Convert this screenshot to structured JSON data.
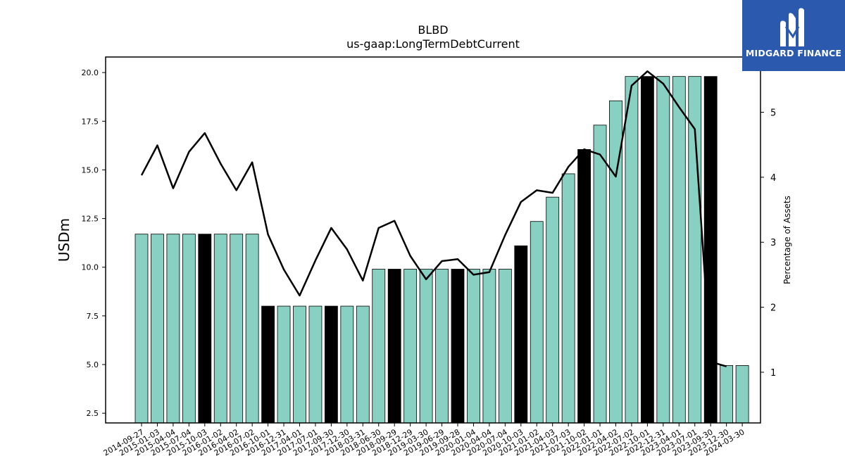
{
  "brand": {
    "name": "MIDGARD FINANCE",
    "color": "#2b59ad"
  },
  "chart_data": {
    "type": "bar",
    "title": "BLBD",
    "subtitle": "us-gaap:LongTermDebtCurrent",
    "ylabel": "USDm",
    "y2label": "Percentage of Assets",
    "ylim": [
      2.0,
      20.8
    ],
    "y2lim": [
      0.22,
      5.85
    ],
    "yticks": [
      "2.5",
      "5.0",
      "7.5",
      "10.0",
      "12.5",
      "15.0",
      "17.5",
      "20.0"
    ],
    "y2ticks": [
      "1",
      "2",
      "3",
      "4",
      "5"
    ],
    "colors": {
      "bar": "#88d0c2",
      "bar_highlight": "#000000",
      "line": "#000000"
    },
    "categories": [
      "2014-09-27",
      "2015-01-03",
      "2015-04-04",
      "2015-07-04",
      "2015-10-03",
      "2016-01-02",
      "2016-04-02",
      "2016-07-02",
      "2016-10-01",
      "2016-12-31",
      "2017-04-01",
      "2017-07-01",
      "2017-09-30",
      "2017-12-30",
      "2018-03-31",
      "2018-06-30",
      "2018-09-29",
      "2018-12-29",
      "2019-03-30",
      "2019-06-29",
      "2019-09-28",
      "2020-01-04",
      "2020-04-04",
      "2020-07-04",
      "2020-10-03",
      "2021-01-02",
      "2021-04-03",
      "2021-07-03",
      "2021-10-02",
      "2022-01-01",
      "2022-04-02",
      "2022-07-02",
      "2022-10-01",
      "2022-12-31",
      "2023-04-01",
      "2023-07-01",
      "2023-09-30",
      "2023-12-30",
      "2024-03-30"
    ],
    "series": [
      {
        "name": "",
        "values": [
          11.7,
          11.7,
          11.7,
          11.7,
          11.7,
          11.7,
          11.7,
          11.7,
          8.0,
          8.0,
          8.0,
          8.0,
          8.0,
          8.0,
          8.0,
          9.9,
          9.9,
          9.9,
          9.9,
          9.9,
          9.9,
          9.9,
          9.9,
          9.9,
          11.1,
          12.35,
          13.6,
          14.8,
          16.05,
          17.3,
          18.55,
          19.8,
          19.8,
          19.8,
          19.8,
          19.8,
          19.8,
          4.95,
          4.95
        ],
        "highlight": [
          false,
          false,
          false,
          false,
          true,
          false,
          false,
          false,
          true,
          false,
          false,
          false,
          true,
          false,
          false,
          false,
          true,
          false,
          false,
          false,
          true,
          false,
          false,
          false,
          true,
          false,
          false,
          false,
          true,
          false,
          false,
          false,
          true,
          false,
          false,
          false,
          true,
          false,
          false
        ]
      },
      {
        "name": "",
        "axis": "right",
        "values": [
          4.03,
          4.49,
          3.83,
          4.39,
          4.68,
          4.21,
          3.8,
          4.23,
          3.12,
          2.58,
          2.18,
          2.72,
          3.22,
          2.89,
          2.41,
          3.22,
          3.33,
          2.79,
          2.43,
          2.71,
          2.74,
          2.5,
          2.54,
          3.11,
          3.62,
          3.8,
          3.76,
          4.16,
          4.43,
          4.35,
          4.01,
          5.41,
          5.63,
          5.44,
          5.08,
          4.74,
          1.16,
          1.09,
          null
        ]
      }
    ],
    "grid": false,
    "legend": "none"
  }
}
